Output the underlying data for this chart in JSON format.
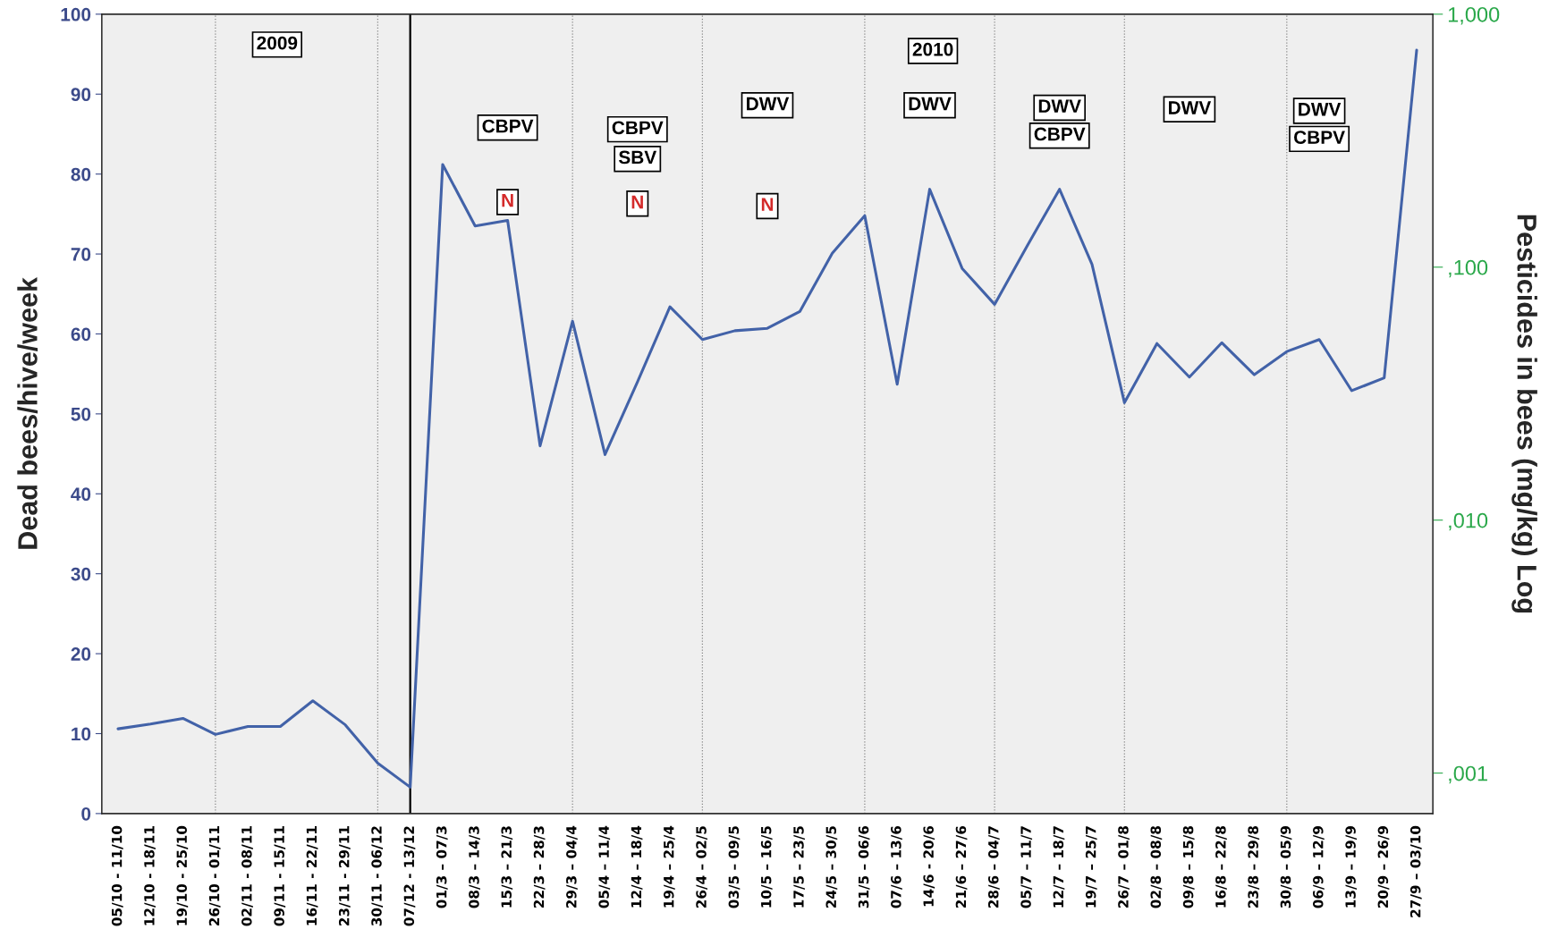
{
  "chart_data": {
    "type": "line",
    "xlabel": null,
    "ylabel": "Dead bees/hive/week",
    "y2label": "Pesticides in bees (mg/kg) Log",
    "categories": [
      "05/10 - 11/10",
      "12/10 - 18/11",
      "19/10 - 25/10",
      "26/10 - 01/11",
      "02/11 - 08/11",
      "09/11 - 15/11",
      "16/11 - 22/11",
      "23/11 - 29/11",
      "30/11 - 06/12",
      "07/12 - 13/12",
      "01/3 – 07/3",
      "08/3 – 14/3",
      "15/3 – 21/3",
      "22/3 – 28/3",
      "29/3 – 04/4",
      "05/4 – 11/4",
      "12/4 – 18/4",
      "19/4 – 25/4",
      "26/4 – 02/5",
      "03/5 – 09/5",
      "10/5 – 16/5",
      "17/5 – 23/5",
      "24/5 – 30/5",
      "31/5 – 06/6",
      "07/6 – 13/6",
      "14/6 - 20/6",
      "21/6 – 27/6",
      "28/6 – 04/7",
      "05/7 – 11/7",
      "12/7 – 18/7",
      "19/7 – 25/7",
      "26/7 – 01/8",
      "02/8 – 08/8",
      "09/8 – 15/8",
      "16/8 – 22/8",
      "23/8 – 29/8",
      "30/8 – 05/9",
      "06/9 – 12/9",
      "13/9 – 19/9",
      "20/9 – 26/9",
      "27/9 – 03/10"
    ],
    "series": [
      {
        "color": "#4262a8",
        "values": [
          10.6,
          11.2,
          11.9,
          9.9,
          10.9,
          10.9,
          14.1,
          11.1,
          6.3,
          3.3,
          81.2,
          73.5,
          74.2,
          46.0,
          61.6,
          44.9,
          54.0,
          63.4,
          59.3,
          60.4,
          60.7,
          62.8,
          70.1,
          74.8,
          53.7,
          78.1,
          68.2,
          63.7,
          71.0,
          78.1,
          68.7,
          51.4,
          58.8,
          54.6,
          58.9,
          54.9,
          57.8,
          59.3,
          52.9,
          54.5,
          95.5
        ]
      }
    ],
    "ylim": [
      0,
      100
    ],
    "yticks": [
      0,
      10,
      20,
      30,
      40,
      50,
      60,
      70,
      80,
      90,
      100
    ],
    "y2_categories": [
      "1,000",
      ",100",
      ",010",
      ",001"
    ],
    "ref_lines": [
      {
        "axis": "x",
        "value": "26/10 - 01/11",
        "line_style": "dotted",
        "color": "#888888"
      },
      {
        "axis": "x",
        "value": "30/11 - 06/12",
        "line_style": "dotted",
        "color": "#888888"
      },
      {
        "axis": "x",
        "value": "07/12 - 13/12",
        "line_style": "solid",
        "color": "#000000"
      },
      {
        "axis": "x",
        "value": "29/3 – 04/4",
        "line_style": "dotted",
        "color": "#888888"
      },
      {
        "axis": "x",
        "value": "26/4 – 02/5",
        "line_style": "dotted",
        "color": "#888888"
      },
      {
        "axis": "x",
        "value": "31/5 – 06/6",
        "line_style": "dotted",
        "color": "#888888"
      },
      {
        "axis": "x",
        "value": "28/6 – 04/7",
        "line_style": "dotted",
        "color": "#888888"
      },
      {
        "axis": "x",
        "value": "26/7 – 01/8",
        "line_style": "dotted",
        "color": "#888888"
      },
      {
        "axis": "x",
        "value": "30/8 – 05/9",
        "line_style": "dotted",
        "color": "#888888"
      }
    ],
    "annotations": [
      "2009",
      "2010",
      "CBPV",
      "N",
      "CBPV",
      "SBV",
      "N",
      "DWV",
      "N",
      "DWV",
      "DWV",
      "CBPV",
      "DWV",
      "DWV",
      "CBPV"
    ],
    "grid": false,
    "legend": false
  }
}
